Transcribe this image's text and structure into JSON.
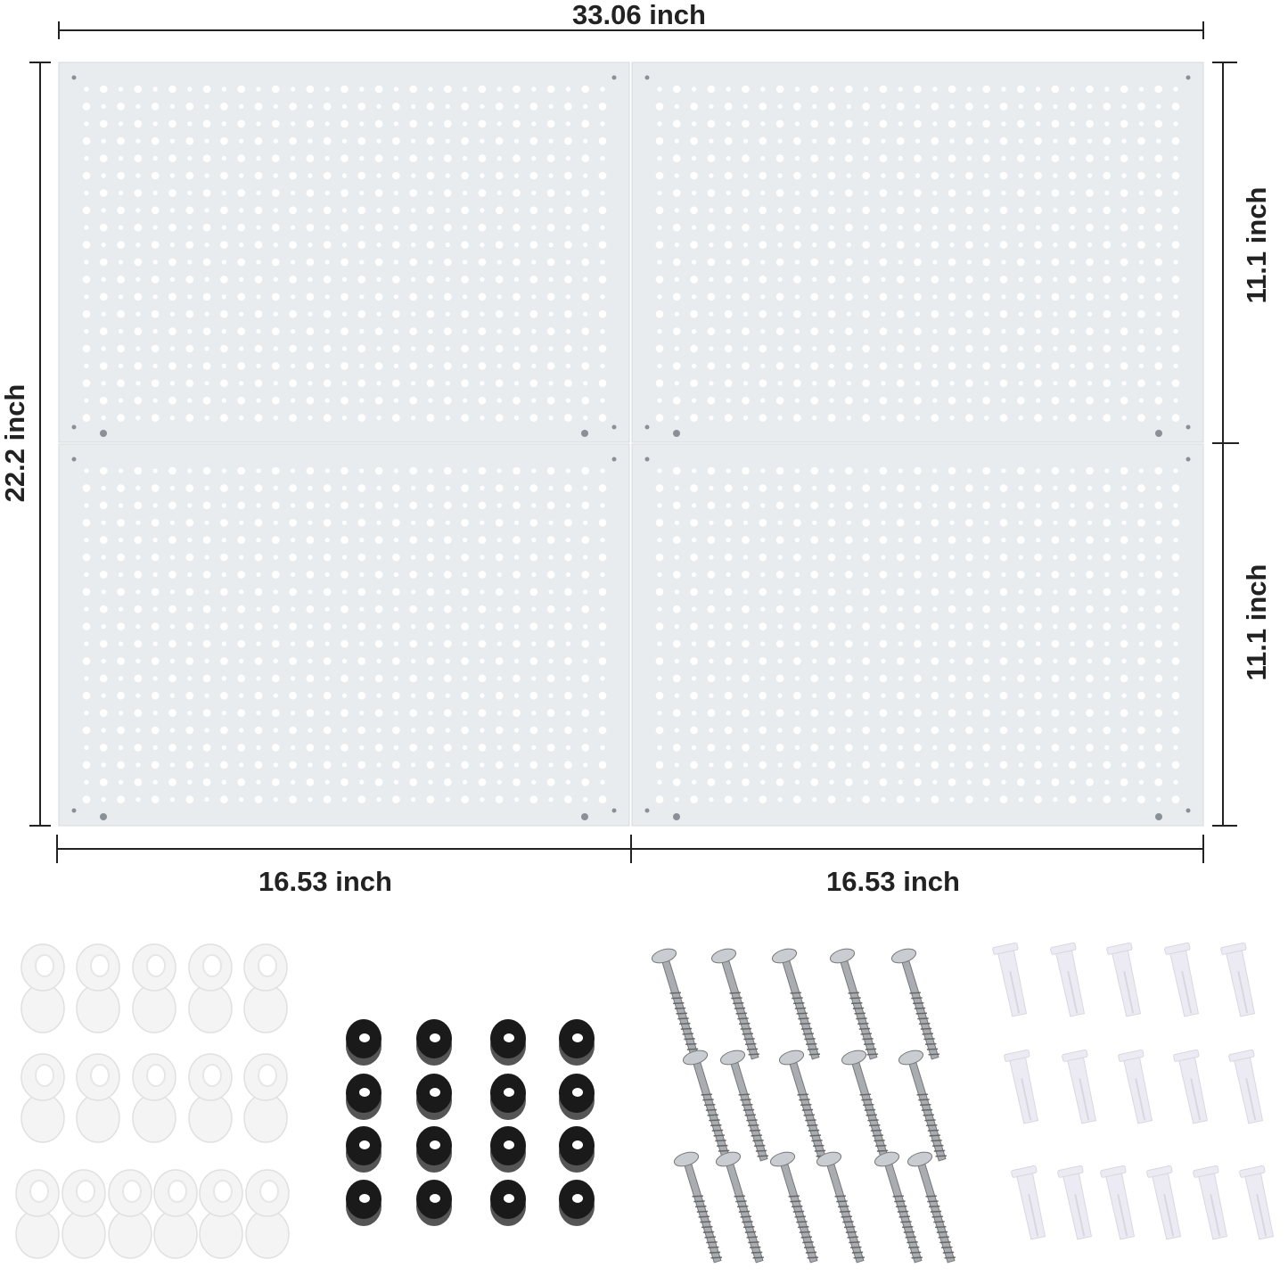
{
  "dimensions": {
    "total_width": "33.06 inch",
    "total_height": "22.2 inch",
    "panel_height_top": "11.1 inch",
    "panel_height_bottom": "11.1 inch",
    "panel_width_left": "16.53 inch",
    "panel_width_right": "16.53 inch"
  },
  "panels": {
    "count": 4,
    "color": "#e9ecef",
    "hole_color": "#ffffff"
  },
  "hardware": {
    "hinged_caps": {
      "count": 16,
      "color": "#f4f4f4"
    },
    "spacers": {
      "count": 16,
      "color": "#1a1a1a"
    },
    "screws": {
      "count": 16,
      "color": "#a9adb2"
    },
    "wall_anchors": {
      "count": 16,
      "color": "#ecebf3"
    }
  }
}
